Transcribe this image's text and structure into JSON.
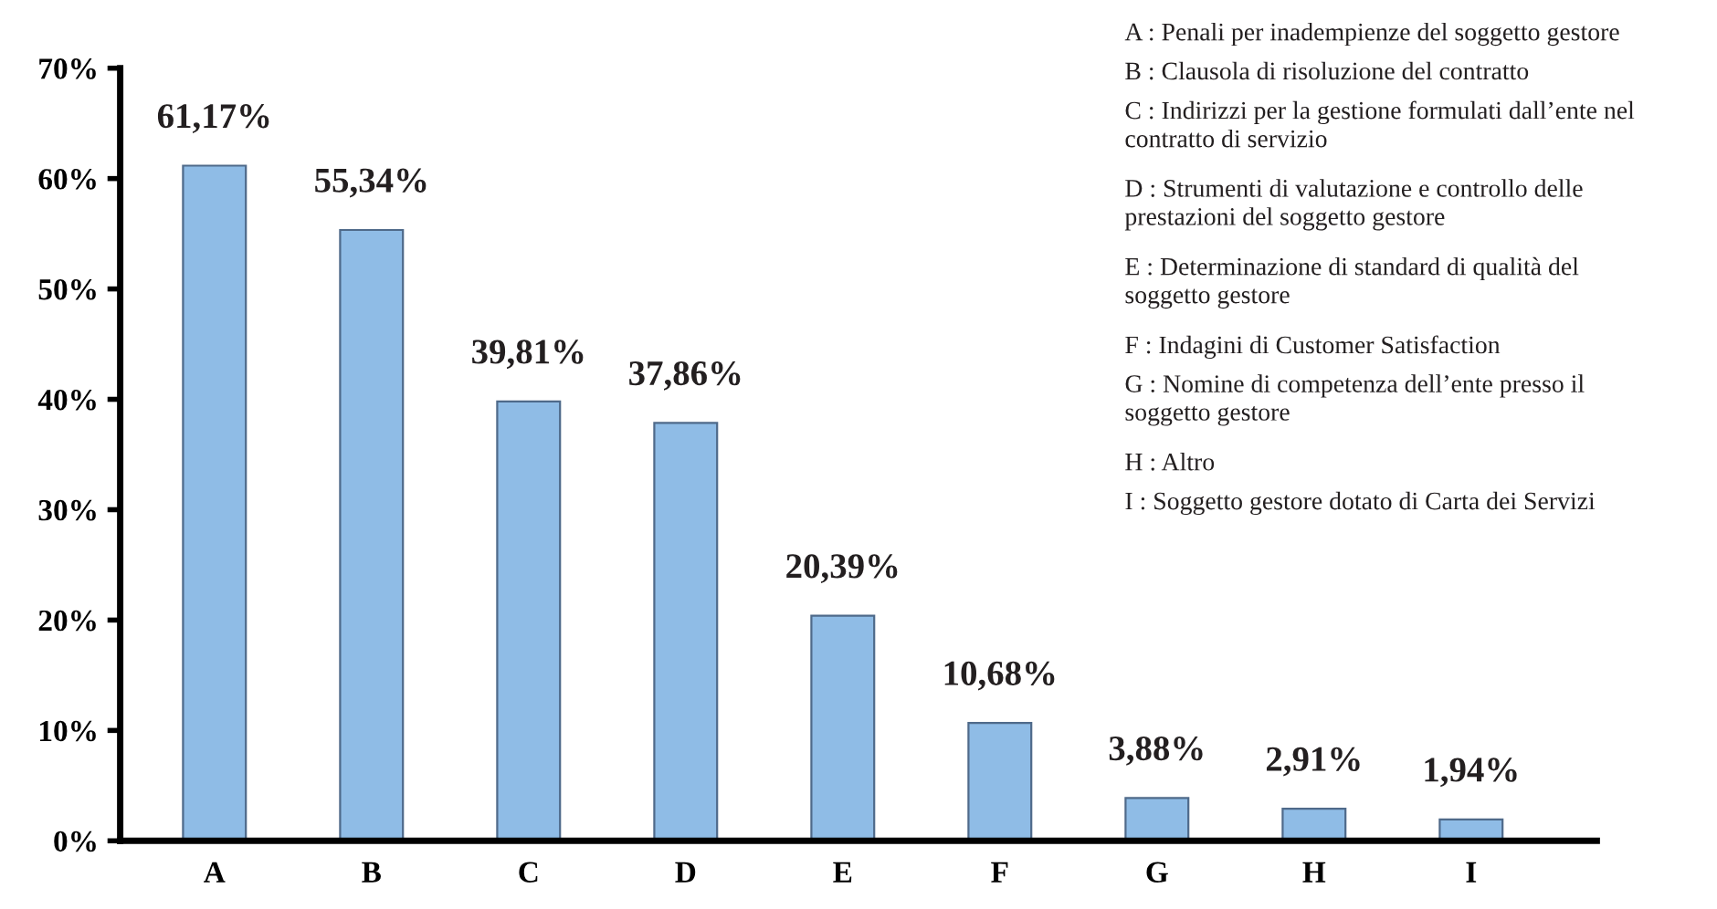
{
  "chart_data": {
    "type": "bar",
    "categories": [
      "A",
      "B",
      "C",
      "D",
      "E",
      "F",
      "G",
      "H",
      "I"
    ],
    "values": [
      61.17,
      55.34,
      39.81,
      37.86,
      20.39,
      10.68,
      3.88,
      2.91,
      1.94
    ],
    "value_labels": [
      "61,17%",
      "55,34%",
      "39,81%",
      "37,86%",
      "20,39%",
      "10,68%",
      "3,88%",
      "2,91%",
      "1,94%"
    ],
    "color": "#8fbce6",
    "ylim": [
      0,
      70
    ],
    "yticks": [
      {
        "value": 0,
        "label": "0%"
      },
      {
        "value": 10,
        "label": "10%"
      },
      {
        "value": 20,
        "label": "20%"
      },
      {
        "value": 30,
        "label": "30%"
      },
      {
        "value": 40,
        "label": "40%"
      },
      {
        "value": 50,
        "label": "50%"
      },
      {
        "value": 60,
        "label": "60%"
      },
      {
        "value": 70,
        "label": "70%"
      }
    ],
    "grid": false,
    "annotations": [
      "A : Penali per inadempienze del soggetto gestore",
      "B : Clausola di risoluzione del contratto",
      "C : Indirizzi per la gestione formulati dall’ente nel contratto di servizio",
      "D : Strumenti di valutazione e controllo delle prestazioni del soggetto gestore",
      "E : Determinazione di standard di qualità del soggetto gestore",
      "F : Indagini di Customer Satisfaction",
      "G : Nomine di competenza dell’ente presso il soggetto gestore",
      "H : Altro",
      "I : Soggetto gestore dotato di Carta dei Servizi"
    ]
  }
}
